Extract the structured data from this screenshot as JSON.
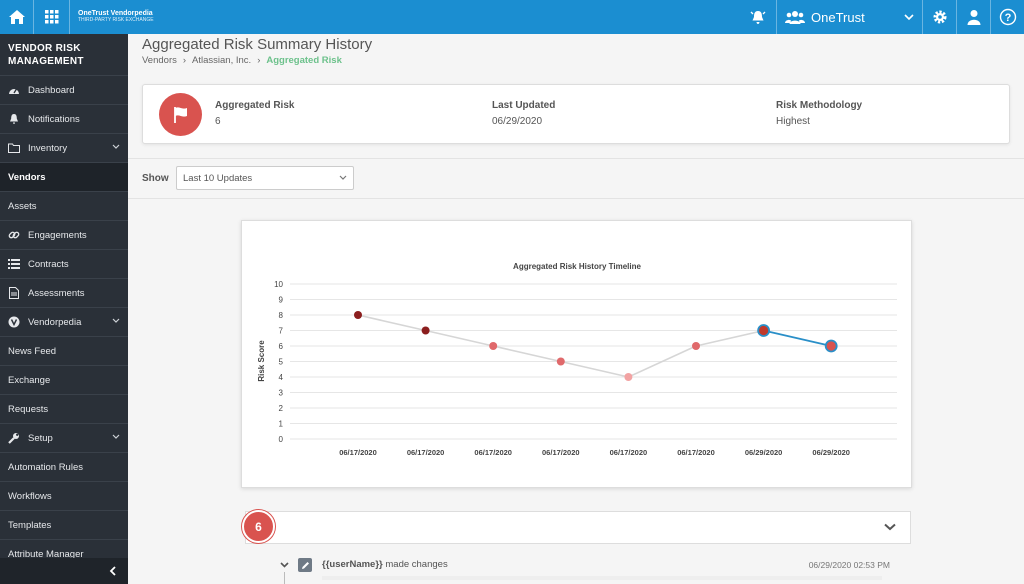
{
  "topbar": {
    "brand_line1": "OneTrust Vendorpedia",
    "brand_line2": "THIRD-PARTY RISK EXCHANGE",
    "org_name": "OneTrust",
    "colors": {
      "bar": "#1b8ed1"
    }
  },
  "sidebar": {
    "title": "VENDOR RISK MANAGEMENT",
    "items": [
      {
        "label": "Dashboard",
        "icon": "dashboard-icon"
      },
      {
        "label": "Notifications",
        "icon": "bell-icon"
      },
      {
        "label": "Inventory",
        "icon": "folder-icon"
      },
      {
        "label": "Vendors"
      },
      {
        "label": "Assets"
      },
      {
        "label": "Engagements",
        "icon": "link-icon"
      },
      {
        "label": "Contracts",
        "icon": "list-icon"
      },
      {
        "label": "Assessments",
        "icon": "document-icon"
      },
      {
        "label": "Vendorpedia",
        "icon": "vendorpedia-icon"
      },
      {
        "label": "News Feed"
      },
      {
        "label": "Exchange"
      },
      {
        "label": "Requests"
      },
      {
        "label": "Setup",
        "icon": "wrench-icon"
      },
      {
        "label": "Automation Rules"
      },
      {
        "label": "Workflows"
      },
      {
        "label": "Templates"
      },
      {
        "label": "Attribute Manager"
      }
    ]
  },
  "page": {
    "title": "Aggregated Risk Summary History",
    "breadcrumb": [
      "Vendors",
      "Atlassian, Inc.",
      "Aggregated Risk"
    ]
  },
  "summary": {
    "risk_label": "Aggregated Risk",
    "risk_value": "6",
    "updated_label": "Last Updated",
    "updated_value": "06/29/2020",
    "method_label": "Risk Methodology",
    "method_value": "Highest",
    "risk_color": "#d9534f"
  },
  "filter": {
    "show_label": "Show",
    "selected": "Last 10 Updates"
  },
  "chart_data": {
    "type": "line",
    "title": "Aggregated Risk History Timeline",
    "xlabel": "",
    "ylabel": "Risk Score",
    "ylim": [
      0,
      10
    ],
    "yticks": [
      0,
      1,
      2,
      3,
      4,
      5,
      6,
      7,
      8,
      9,
      10
    ],
    "categories": [
      "06/17/2020",
      "06/17/2020",
      "06/17/2020",
      "06/17/2020",
      "06/17/2020",
      "06/17/2020",
      "06/29/2020",
      "06/29/2020"
    ],
    "values": [
      8,
      7,
      6,
      5,
      4,
      6,
      7,
      6
    ],
    "point_colors": [
      "#8b1e1e",
      "#8b1e1e",
      "#e0696b",
      "#e0696b",
      "#f2a3a3",
      "#e0696b",
      "#c0392b",
      "#d9534f"
    ],
    "grid": true,
    "line_color": "#d6d6d6",
    "highlight_line_color": "#2a8fc8"
  },
  "history": {
    "badge": "6",
    "user": "{{userName}}",
    "action": "made changes",
    "time": "06/29/2020 02:53 PM"
  }
}
